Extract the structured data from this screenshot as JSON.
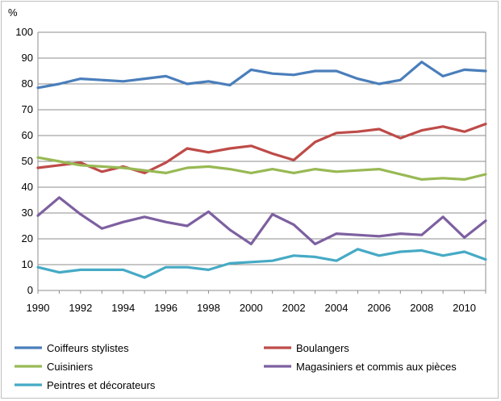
{
  "chart_data": {
    "type": "line",
    "ylabel": "%",
    "ylim": [
      0,
      100
    ],
    "yticks": [
      0,
      10,
      20,
      30,
      40,
      50,
      60,
      70,
      80,
      90,
      100
    ],
    "xlim": [
      1990,
      2011
    ],
    "xticks": [
      1990,
      1992,
      1994,
      1996,
      1998,
      2000,
      2002,
      2004,
      2006,
      2008,
      2010
    ],
    "grid": true,
    "legend": "bottom",
    "x": [
      1990,
      1991,
      1992,
      1993,
      1994,
      1995,
      1996,
      1997,
      1998,
      1999,
      2000,
      2001,
      2002,
      2003,
      2004,
      2005,
      2006,
      2007,
      2008,
      2009,
      2010,
      2011
    ],
    "series": [
      {
        "name": "Coiffeurs stylistes",
        "color": "#4a7ebb",
        "values": [
          78.5,
          80,
          82,
          81.5,
          81,
          82,
          83,
          80,
          81,
          79.5,
          85.5,
          84,
          83.5,
          85,
          85,
          82,
          80,
          81.5,
          88.5,
          83,
          85.5,
          85
        ]
      },
      {
        "name": "Boulangers",
        "color": "#be4b48",
        "values": [
          47.5,
          48.5,
          49.5,
          46,
          48,
          45.5,
          49.5,
          55,
          53.5,
          55,
          56,
          53,
          50.5,
          57.5,
          61,
          61.5,
          62.5,
          59,
          62,
          63.5,
          61.5,
          64.5
        ]
      },
      {
        "name": "Cuisiniers",
        "color": "#98b954",
        "values": [
          51.5,
          50,
          48.5,
          48,
          47.5,
          46.5,
          45.5,
          47.5,
          48,
          47,
          45.5,
          47,
          45.5,
          47,
          46,
          46.5,
          47,
          45,
          43,
          43.5,
          43,
          45
        ]
      },
      {
        "name": "Magasiniers et commis aux pièces",
        "color": "#7d60a0",
        "values": [
          29,
          36,
          29.5,
          24,
          26.5,
          28.5,
          26.5,
          25,
          30.5,
          23.5,
          18,
          29.5,
          25.5,
          18,
          22,
          21.5,
          21,
          22,
          21.5,
          28.5,
          20.5,
          27
        ]
      },
      {
        "name": "Peintres et décorateurs",
        "color": "#46aac5",
        "values": [
          9,
          7,
          8,
          8,
          8,
          5,
          9,
          9,
          8,
          10.5,
          11,
          11.5,
          13.5,
          13,
          11.5,
          16,
          13.5,
          15,
          15.5,
          13.5,
          15,
          12
        ]
      }
    ]
  }
}
